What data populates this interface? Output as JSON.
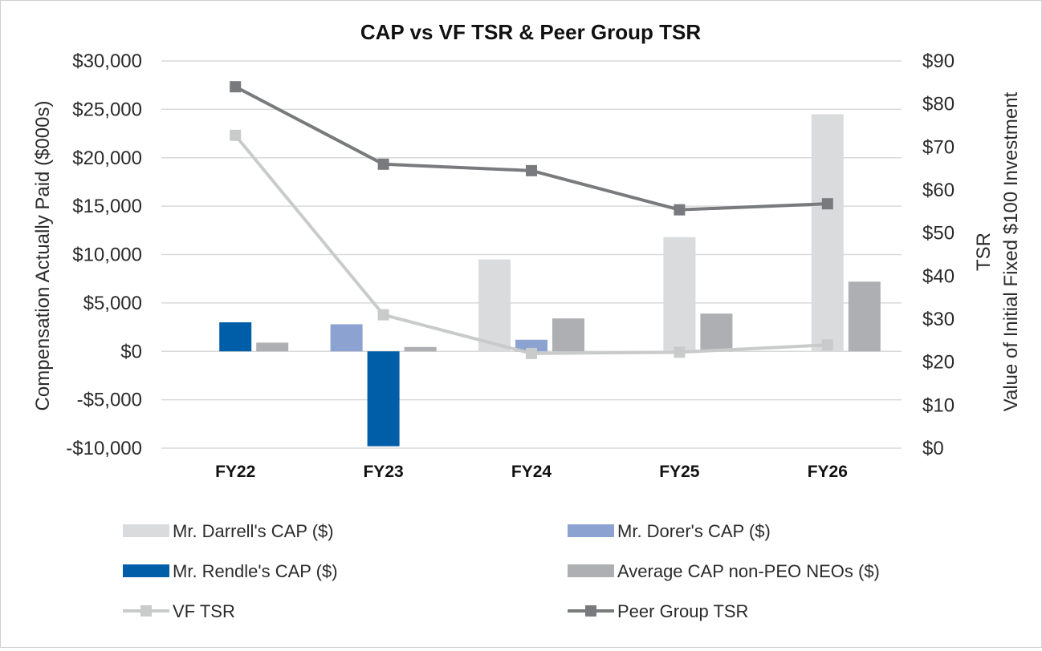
{
  "chart_data": {
    "type": "bar",
    "title": "CAP vs VF TSR & Peer Group TSR",
    "categories": [
      "FY22",
      "FY23",
      "FY24",
      "FY25",
      "FY26"
    ],
    "ylabel": "Compensation Actually Paid ($000s)",
    "y2label_line1": "TSR",
    "y2label_line2": "Value of Initial Fixed $100 Investment",
    "ylim": [
      -10000,
      30000
    ],
    "y2lim": [
      0,
      90
    ],
    "y_ticks": [
      30000,
      25000,
      20000,
      15000,
      10000,
      5000,
      0,
      -5000,
      -10000
    ],
    "y_tick_labels": [
      "$30,000",
      "$25,000",
      "$20,000",
      "$15,000",
      "$10,000",
      "$5,000",
      "$0",
      "-$5,000",
      "-$10,000"
    ],
    "y2_ticks": [
      90,
      80,
      70,
      60,
      50,
      40,
      30,
      20,
      10,
      0
    ],
    "y2_tick_labels": [
      "$90",
      "$80",
      "$70",
      "$60",
      "$50",
      "$40",
      "$30",
      "$20",
      "$10",
      "$0"
    ],
    "grid": true,
    "legend_position": "bottom",
    "bar_series": [
      {
        "name": "Mr. Darrell's CAP ($)",
        "color": "#dadbdd",
        "values": [
          null,
          null,
          9500,
          11800,
          24500
        ]
      },
      {
        "name": "Mr. Dorer's CAP ($)",
        "color": "#8ca2d0",
        "values": [
          null,
          2800,
          1200,
          null,
          null
        ]
      },
      {
        "name": "Mr. Rendle's CAP ($)",
        "color": "#005da8",
        "values": [
          3000,
          -9800,
          null,
          null,
          null
        ]
      },
      {
        "name": "Average CAP non-PEO NEOs ($)",
        "color": "#aeafb2",
        "values": [
          900,
          450,
          3400,
          3900,
          7200
        ]
      }
    ],
    "line_series": [
      {
        "name": "VF TSR",
        "color": "#c9caca",
        "values": [
          72.7,
          31.0,
          22.0,
          22.3,
          24.0
        ]
      },
      {
        "name": "Peer Group TSR",
        "color": "#797a7d",
        "values": [
          84.0,
          66.0,
          64.5,
          55.4,
          56.8
        ]
      }
    ]
  }
}
